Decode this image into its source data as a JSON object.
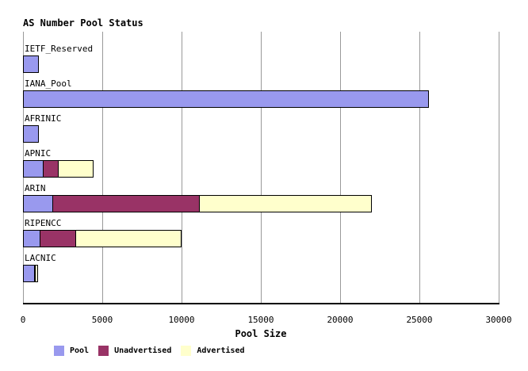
{
  "title": "AS Number Pool Status",
  "colors": {
    "pool": "#9999ee",
    "unadvertised": "#993366",
    "advertised": "#ffffcc",
    "gridline": "#999999",
    "axis": "#000000",
    "bar_border": "#000000",
    "background": "#ffffff",
    "text": "#000000"
  },
  "chart_data": {
    "type": "bar",
    "orientation": "horizontal",
    "stacked": true,
    "title": "AS Number Pool Status",
    "xlabel": "Pool Size",
    "xlim": [
      0,
      30000
    ],
    "x_ticks": [
      0,
      5000,
      10000,
      15000,
      20000,
      25000,
      30000
    ],
    "x_tick_labels": [
      "0",
      "5000",
      "10000",
      "15000",
      "20000",
      "25000",
      "30000"
    ],
    "grid": "vertical",
    "legend_position": "bottom",
    "categories": [
      "IETF_Reserved",
      "IANA_Pool",
      "AFRINIC",
      "APNIC",
      "ARIN",
      "RIPENCC",
      "LACNIC"
    ],
    "series": [
      {
        "name": "Pool",
        "color_key": "pool",
        "values": [
          1000,
          25600,
          1000,
          1300,
          1900,
          1100,
          750
        ]
      },
      {
        "name": "Unadvertised",
        "color_key": "unadvertised",
        "values": [
          0,
          0,
          0,
          1000,
          9300,
          2300,
          50
        ]
      },
      {
        "name": "Advertised",
        "color_key": "advertised",
        "values": [
          0,
          0,
          0,
          2250,
          10900,
          6700,
          200
        ]
      }
    ]
  },
  "legend": {
    "items": [
      {
        "label": "Pool",
        "color_key": "pool"
      },
      {
        "label": "Unadvertised",
        "color_key": "unadvertised"
      },
      {
        "label": "Advertised",
        "color_key": "advertised"
      }
    ]
  }
}
